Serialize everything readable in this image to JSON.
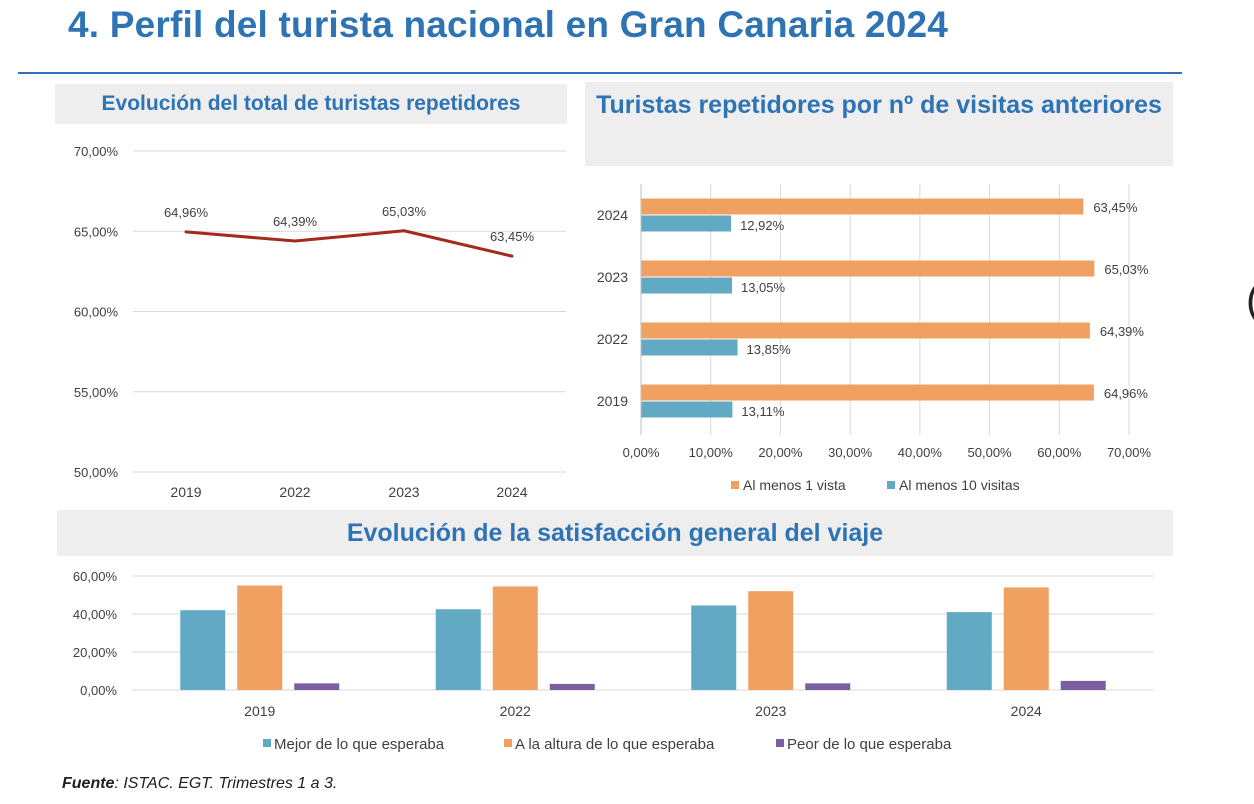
{
  "page": {
    "title": "4. Perfil del turista nacional en Gran Canaria 2024",
    "source_label": "Fuente",
    "source_text": ": ISTAC. EGT. Trimestres 1 a 3.",
    "edge_glyph": "("
  },
  "colors": {
    "title_blue": "#2e74b5",
    "line_red": "#a52a1e",
    "orange": "#f0a060",
    "teal": "#62a9c4",
    "purple": "#7b5fa0",
    "panel_bg": "#eeeeee",
    "grid": "#d9d9d9"
  },
  "chart_data": [
    {
      "type": "line",
      "title": "Evolución del total de turistas repetidores",
      "categories": [
        "2019",
        "2022",
        "2023",
        "2024"
      ],
      "series": [
        {
          "values": [
            64.96,
            64.39,
            65.03,
            63.45
          ],
          "labels": [
            "64,96%",
            "64,39%",
            "65,03%",
            "63,45%"
          ]
        }
      ],
      "ylim": [
        50,
        70
      ],
      "yticks": [
        70,
        65,
        60,
        55,
        50
      ],
      "ytick_labels": [
        "70,00%",
        "65,00%",
        "60,00%",
        "55,00%",
        "50,00%"
      ],
      "grid": true,
      "legend": "none"
    },
    {
      "type": "bar",
      "orientation": "horizontal",
      "title": "Turistas repetidores por nº de visitas anteriores",
      "categories": [
        "2024",
        "2023",
        "2022",
        "2019"
      ],
      "series": [
        {
          "name": "Al menos 1 vista",
          "values": [
            63.45,
            65.03,
            64.39,
            64.96
          ],
          "labels": [
            "63,45%",
            "65,03%",
            "64,39%",
            "64,96%"
          ]
        },
        {
          "name": "Al menos 10 visitas",
          "values": [
            12.92,
            13.05,
            13.85,
            13.11
          ],
          "labels": [
            "12,92%",
            "13,05%",
            "13,85%",
            "13,11%"
          ]
        }
      ],
      "xlim": [
        0,
        70
      ],
      "xticks": [
        0,
        10,
        20,
        30,
        40,
        50,
        60,
        70
      ],
      "xtick_labels": [
        "0,00%",
        "10,00%",
        "20,00%",
        "30,00%",
        "40,00%",
        "50,00%",
        "60,00%",
        "70,00%"
      ],
      "grid": true,
      "legend": "bottom"
    },
    {
      "type": "bar",
      "orientation": "vertical",
      "title": "Evolución de la satisfacción general del viaje",
      "categories": [
        "2019",
        "2022",
        "2023",
        "2024"
      ],
      "series": [
        {
          "name": "Mejor de lo que esperaba",
          "values": [
            42,
            42.5,
            44.5,
            41
          ]
        },
        {
          "name": "A la altura de lo que esperaba",
          "values": [
            55,
            54.5,
            52,
            54
          ]
        },
        {
          "name": "Peor de lo que esperaba",
          "values": [
            3.5,
            3.2,
            3.5,
            4.8
          ]
        }
      ],
      "ylim": [
        0,
        60
      ],
      "yticks": [
        60,
        40,
        20,
        0
      ],
      "ytick_labels": [
        "60,00%",
        "40,00%",
        "20,00%",
        "0,00%"
      ],
      "grid": true,
      "legend": "bottom"
    }
  ]
}
